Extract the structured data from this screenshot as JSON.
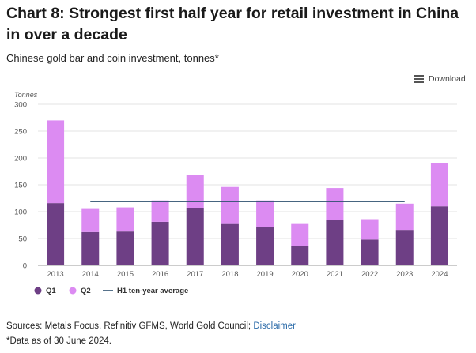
{
  "header": {
    "title": "Chart 8: Strongest first half year for retail investment in China in over a decade",
    "subtitle": "Chinese gold bar and coin investment, tonnes*"
  },
  "toolbar": {
    "download_label": "Download",
    "download_icon": "hamburger-menu-icon"
  },
  "footer": {
    "sources": "Sources: Metals Focus, Refinitiv GFMS, World Gold Council;",
    "disclaimer_label": "Disclaimer",
    "note": "*Data as of 30 June 2024."
  },
  "colors": {
    "q1": "#6e3f85",
    "q2": "#dc8bf2",
    "average_line": "#2c4f6e",
    "grid": "#e3e3e3",
    "axis_text": "#555555"
  },
  "chart_data": {
    "type": "bar",
    "stacked": true,
    "ylabel": "Tonnes",
    "ylim": [
      0,
      300
    ],
    "yticks": [
      0,
      50,
      100,
      150,
      200,
      250,
      300
    ],
    "categories": [
      "2013",
      "2014",
      "2015",
      "2016",
      "2017",
      "2018",
      "2019",
      "2020",
      "2021",
      "2022",
      "2023",
      "2024"
    ],
    "series": [
      {
        "name": "Q1",
        "values": [
          116,
          62,
          63,
          81,
          106,
          77,
          71,
          36,
          85,
          48,
          66,
          110
        ]
      },
      {
        "name": "Q2",
        "values": [
          154,
          43,
          45,
          40,
          63,
          69,
          50,
          41,
          59,
          38,
          49,
          80
        ]
      }
    ],
    "reference_line": {
      "name": "H1 ten-year average",
      "value": 119,
      "from": "2014",
      "to": "2023"
    },
    "legend_position": "bottom-left",
    "grid": true
  }
}
